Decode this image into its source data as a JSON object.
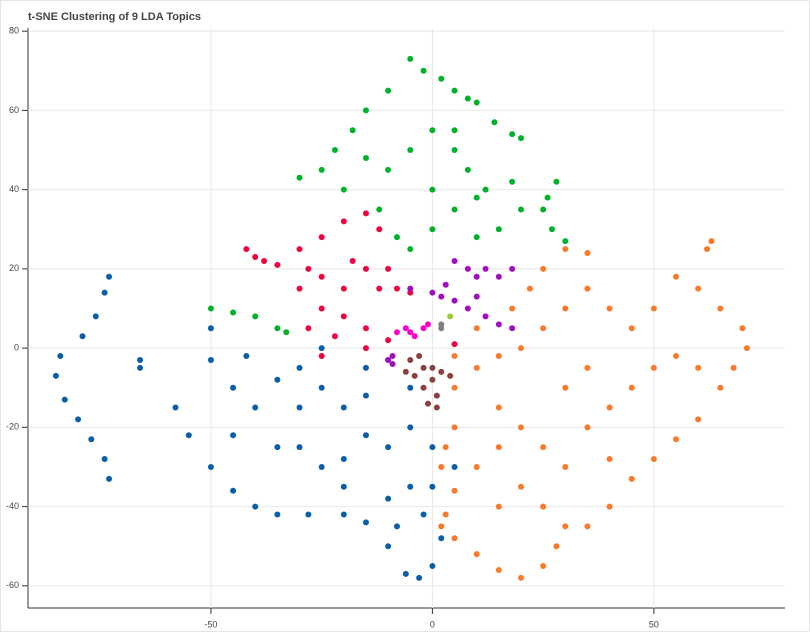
{
  "chart_data": {
    "type": "scatter",
    "title": "t-SNE Clustering of 9 LDA Topics",
    "xlim": [
      -91.3,
      79.6
    ],
    "ylim": [
      -65.6,
      80.8
    ],
    "xticks": [
      -50,
      0,
      50
    ],
    "yticks": [
      -60,
      -40,
      -20,
      0,
      20,
      40,
      60,
      80
    ],
    "grid": true,
    "series": [
      {
        "color": "#0b5ea8",
        "x": [
          -73,
          -74,
          -76,
          -79,
          -84,
          -85,
          -83,
          -80,
          -77,
          -74,
          -73,
          -66,
          -66,
          -58,
          -55,
          -50,
          -45,
          -40,
          -35,
          -28,
          -20,
          -15,
          -10,
          -6,
          -3,
          0,
          2,
          -50,
          -50,
          -45,
          -42,
          -40,
          -35,
          -30,
          -25,
          -20,
          -15,
          -10,
          -30,
          -25,
          -20,
          -15,
          -10,
          -5,
          0,
          -5,
          -10,
          -20,
          -35,
          -45,
          -25,
          -15,
          -5,
          0,
          5,
          -30,
          -8,
          -2
        ],
        "values": [
          18,
          14,
          8,
          3,
          -2,
          -7,
          -13,
          -18,
          -23,
          -28,
          -33,
          -3,
          -5,
          -15,
          -22,
          -30,
          -36,
          -40,
          -42,
          -42,
          -42,
          -44,
          -50,
          -57,
          -58,
          -55,
          -48,
          5,
          -3,
          -10,
          -2,
          -15,
          -8,
          -5,
          -10,
          -15,
          -5,
          -3,
          -25,
          -30,
          -28,
          -22,
          -25,
          -20,
          -25,
          -35,
          -38,
          -35,
          -25,
          -22,
          0,
          -12,
          -10,
          -35,
          -30,
          -15,
          -45,
          -42
        ]
      },
      {
        "color": "#00b22a",
        "x": [
          -30,
          -25,
          -22,
          -18,
          -15,
          -10,
          -5,
          -2,
          2,
          5,
          8,
          10,
          14,
          18,
          20,
          -20,
          -10,
          -5,
          0,
          5,
          0,
          5,
          8,
          10,
          12,
          15,
          18,
          20,
          -8,
          -5,
          0,
          10,
          26,
          28,
          27,
          30,
          25,
          -50,
          -45,
          -40,
          -35,
          -33,
          5,
          -15,
          -12
        ],
        "values": [
          43,
          45,
          50,
          55,
          60,
          65,
          73,
          70,
          68,
          65,
          63,
          62,
          57,
          54,
          53,
          40,
          45,
          50,
          55,
          50,
          40,
          35,
          45,
          38,
          40,
          30,
          42,
          35,
          28,
          25,
          30,
          28,
          38,
          42,
          30,
          27,
          35,
          10,
          9,
          8,
          5,
          4,
          55,
          48,
          35
        ]
      },
      {
        "color": "#f0043f",
        "x": [
          -42,
          -40,
          -38,
          -35,
          -30,
          -25,
          -20,
          -15,
          -12,
          -30,
          -25,
          -20,
          -15,
          -12,
          -10,
          -8,
          -5,
          -25,
          -20,
          -15,
          -28,
          -22,
          -15,
          -10,
          -25,
          5,
          -18,
          -28
        ],
        "values": [
          25,
          23,
          22,
          21,
          25,
          28,
          32,
          34,
          30,
          15,
          18,
          15,
          20,
          15,
          20,
          15,
          14,
          10,
          8,
          5,
          5,
          3,
          0,
          2,
          -2,
          1,
          22,
          20
        ]
      },
      {
        "color": "#a10ec0",
        "x": [
          -5,
          0,
          3,
          5,
          8,
          10,
          12,
          15,
          18,
          5,
          8,
          12,
          15,
          18,
          10,
          -10,
          -9,
          -9,
          2
        ],
        "values": [
          15,
          14,
          16,
          22,
          20,
          18,
          20,
          18,
          20,
          12,
          10,
          8,
          6,
          5,
          13,
          -3,
          -4,
          -2,
          13
        ]
      },
      {
        "color": "#ff00c8",
        "x": [
          -8,
          -6,
          -4,
          -2,
          -1,
          -5
        ],
        "values": [
          4,
          5,
          3,
          5,
          6,
          4
        ]
      },
      {
        "color": "#808080",
        "x": [
          2,
          2
        ],
        "values": [
          5,
          6
        ]
      },
      {
        "color": "#9acd32",
        "x": [
          4
        ],
        "values": [
          8
        ]
      },
      {
        "color": "#8b4040",
        "x": [
          -5,
          -3,
          -2,
          0,
          2,
          4,
          -2,
          0,
          1,
          -1,
          1,
          -4,
          -6
        ],
        "values": [
          -3,
          -2,
          -5,
          -5,
          -6,
          -7,
          -10,
          -8,
          -12,
          -14,
          -15,
          -7,
          -6
        ]
      },
      {
        "color": "#f97a2b",
        "x": [
          5,
          3,
          2,
          5,
          3,
          2,
          5,
          10,
          15,
          20,
          25,
          28,
          30,
          35,
          40,
          45,
          50,
          55,
          60,
          65,
          68,
          71,
          70,
          65,
          60,
          55,
          62,
          63,
          25,
          30,
          35,
          35,
          30,
          25,
          20,
          15,
          10,
          5,
          15,
          20,
          25,
          30,
          35,
          40,
          45,
          50,
          55,
          60,
          45,
          40,
          50,
          20,
          15,
          25,
          10,
          15,
          30,
          35,
          40,
          10,
          18,
          22,
          5
        ],
        "values": [
          -20,
          -25,
          -30,
          -36,
          -42,
          -45,
          -48,
          -52,
          -56,
          -58,
          -55,
          -50,
          -45,
          -45,
          -40,
          -33,
          -28,
          -23,
          -18,
          -10,
          -5,
          0,
          5,
          10,
          15,
          18,
          25,
          27,
          20,
          25,
          24,
          15,
          10,
          5,
          0,
          -2,
          -5,
          -10,
          -15,
          -20,
          -25,
          -30,
          -20,
          -15,
          -10,
          -5,
          -2,
          -5,
          5,
          10,
          10,
          -35,
          -40,
          -40,
          -30,
          -25,
          -10,
          -5,
          -28,
          5,
          10,
          15,
          -2
        ]
      }
    ]
  }
}
